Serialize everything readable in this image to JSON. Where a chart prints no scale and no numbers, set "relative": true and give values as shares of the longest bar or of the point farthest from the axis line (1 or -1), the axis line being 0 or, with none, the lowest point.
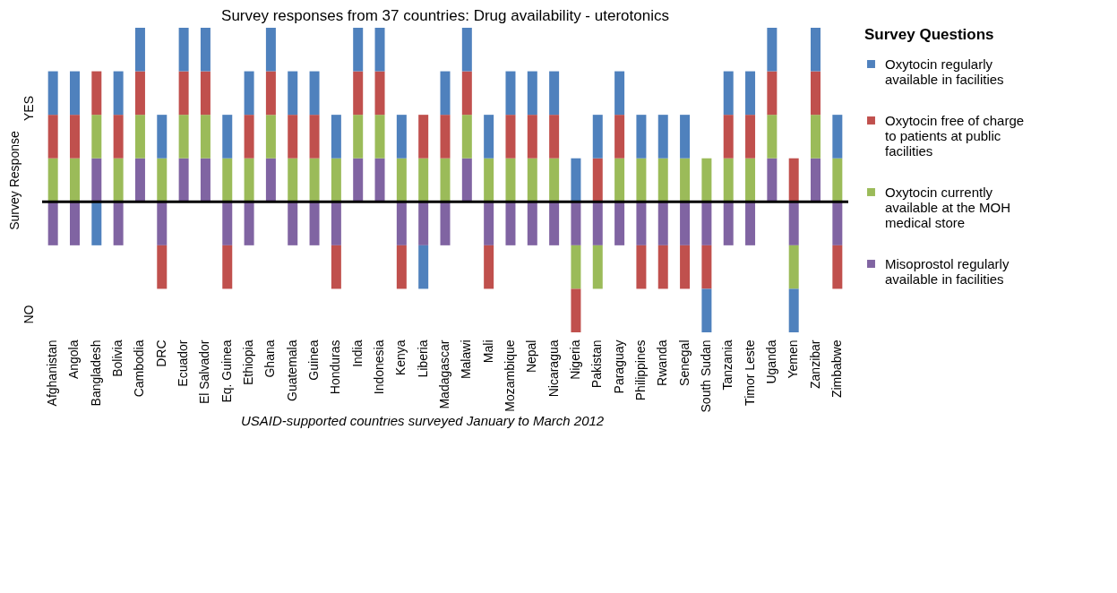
{
  "chart_data": {
    "type": "bar",
    "stacked": true,
    "relative": true,
    "title": "Survey responses from 37 countries: Drug availability - uterotonics",
    "ylabel": "Survey Response",
    "legend_title": "Survey Questions",
    "legend": "right",
    "grid": false,
    "categories": [
      "Afghanistan",
      "Angola",
      "Bangladesh",
      "Bolivia",
      "Cambodia",
      "DRC",
      "Ecuador",
      "El Salvador",
      "Eq. Guinea",
      "Ethiopia",
      "Ghana",
      "Guatemala",
      "Guinea",
      "Honduras",
      "India",
      "Indonesia",
      "Kenya",
      "Liberia",
      "Madagascar",
      "Malawi",
      "Mali",
      "Mozambique",
      "Nepal",
      "Nicaragua",
      "Nigeria",
      "Pakistan",
      "Paraguay",
      "Philippines",
      "Rwanda",
      "Senegal",
      "South Sudan",
      "Tanzania",
      "Timor Leste",
      "Uganda",
      "Yemen",
      "Zanzibar",
      "Zimbabwe"
    ],
    "ref_lines": [
      {
        "axis": "y",
        "value": 0,
        "color": "#000000"
      }
    ],
    "annotations": [
      "YES",
      "NO",
      "USAID-supported countries surveyed January to March 2012"
    ],
    "series": [
      {
        "name": "Misoprostol regularly available in facilities",
        "color": "#8064a2",
        "values": [
          -0.25,
          -0.25,
          0.25,
          -0.25,
          0.25,
          -0.25,
          0.25,
          0.25,
          -0.25,
          -0.25,
          0.25,
          -0.25,
          -0.25,
          -0.25,
          0.25,
          0.25,
          -0.25,
          -0.25,
          -0.25,
          0.25,
          -0.25,
          -0.25,
          -0.25,
          -0.25,
          -0.25,
          -0.25,
          -0.25,
          -0.25,
          -0.25,
          -0.25,
          -0.25,
          -0.25,
          -0.25,
          0.25,
          -0.25,
          0.25,
          -0.25
        ]
      },
      {
        "name": "Oxytocin currently available at the MOH medical store",
        "color": "#9bbb59",
        "values": [
          0.25,
          0.25,
          0.25,
          0.25,
          0.25,
          0.25,
          0.25,
          0.25,
          0.25,
          0.25,
          0.25,
          0.25,
          0.25,
          0.25,
          0.25,
          0.25,
          0.25,
          0.25,
          0.25,
          0.25,
          0.25,
          0.25,
          0.25,
          0.25,
          -0.25,
          -0.25,
          0.25,
          0.25,
          0.25,
          0.25,
          0.25,
          0.25,
          0.25,
          0.25,
          -0.25,
          0.25,
          0.25
        ]
      },
      {
        "name": "Oxytocin free of charge to patients at public facilities",
        "color": "#c0504d",
        "values": [
          0.25,
          0.25,
          0.25,
          0.25,
          0.25,
          -0.25,
          0.25,
          0.25,
          -0.25,
          0.25,
          0.25,
          0.25,
          0.25,
          -0.25,
          0.25,
          0.25,
          -0.25,
          0.25,
          0.25,
          0.25,
          -0.25,
          0.25,
          0.25,
          0.25,
          -0.25,
          0.25,
          0.25,
          -0.25,
          -0.25,
          -0.25,
          -0.25,
          0.25,
          0.25,
          0.25,
          0.25,
          0.25,
          -0.25
        ]
      },
      {
        "name": "Oxytocin regularly available in facilities",
        "color": "#4f81bd",
        "values": [
          0.25,
          0.25,
          -0.25,
          0.25,
          0.25,
          0.25,
          0.25,
          0.25,
          0.25,
          0.25,
          0.25,
          0.25,
          0.25,
          0.25,
          0.25,
          0.25,
          0.25,
          -0.25,
          0.25,
          0.25,
          0.25,
          0.25,
          0.25,
          0.25,
          0.25,
          0.25,
          0.25,
          0.25,
          0.25,
          0.25,
          -0.25,
          0.25,
          0.25,
          0.25,
          -0.25,
          0.25,
          0.25
        ]
      }
    ]
  }
}
